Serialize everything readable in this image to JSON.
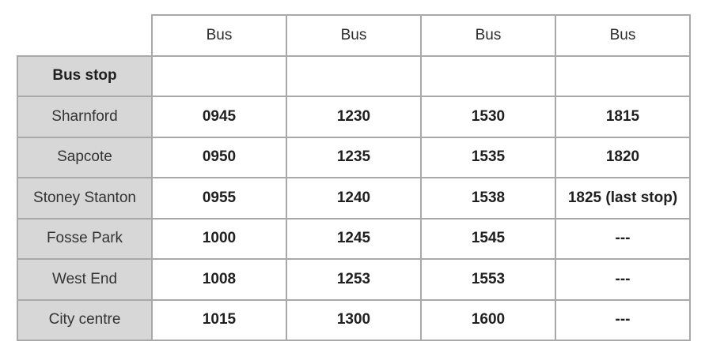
{
  "table": {
    "corner_label": "",
    "column_headers": [
      "Bus",
      "Bus",
      "Bus",
      "Bus"
    ],
    "row_header_title": "Bus stop",
    "row_header_cells": [
      "",
      "",
      "",
      ""
    ],
    "rows": [
      {
        "stop": "Sharnford",
        "times": [
          "0945",
          "1230",
          "1530",
          "1815"
        ]
      },
      {
        "stop": "Sapcote",
        "times": [
          "0950",
          "1235",
          "1535",
          "1820"
        ]
      },
      {
        "stop": "Stoney Stanton",
        "times": [
          "0955",
          "1240",
          "1538",
          "1825 (last stop)"
        ]
      },
      {
        "stop": "Fosse Park",
        "times": [
          "1000",
          "1245",
          "1545",
          "---"
        ]
      },
      {
        "stop": "West End",
        "times": [
          "1008",
          "1253",
          "1553",
          "---"
        ]
      },
      {
        "stop": "City centre",
        "times": [
          "1015",
          "1300",
          "1600",
          "---"
        ]
      }
    ],
    "colors": {
      "header_fill": "#d7d7d7",
      "border": "#a9a9a9",
      "text": "#1f1f1f",
      "background": "#ffffff"
    }
  }
}
